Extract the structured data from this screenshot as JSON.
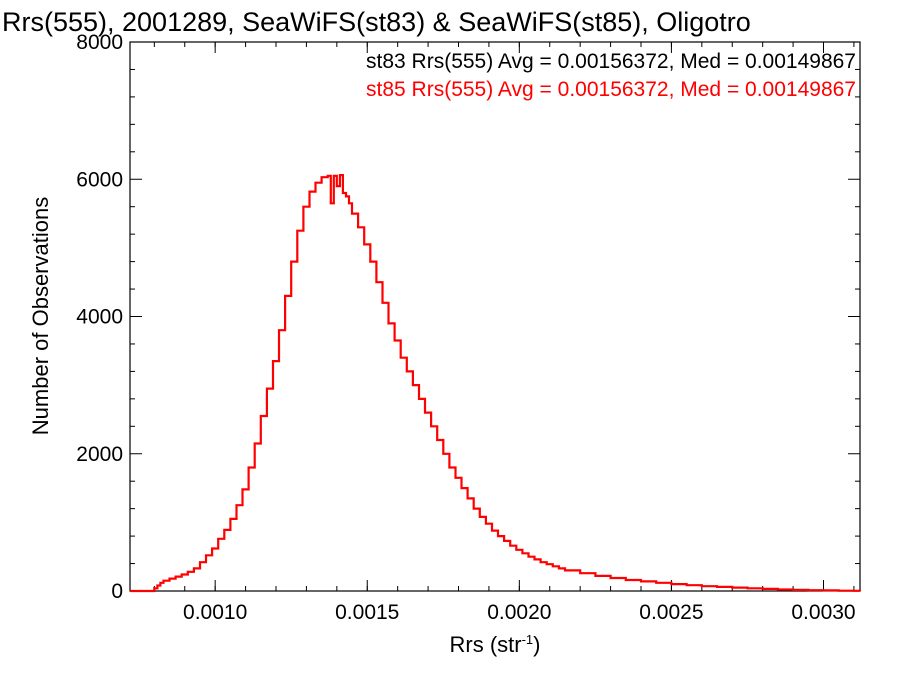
{
  "chart_data": {
    "type": "line",
    "render": "step-histogram",
    "title": "Rrs(555), 2001289, SeaWiFS(st83) & SeaWiFS(st85), Oligotro",
    "xlabel": "Rrs (str",
    "xlabel_sup": "-1",
    "xlabel_end": ")",
    "ylabel": "Number of Observations",
    "xlim": [
      0.00072,
      0.00312
    ],
    "ylim": [
      0,
      8000
    ],
    "xticks": [
      0.001,
      0.0015,
      0.002,
      0.0025,
      0.003
    ],
    "xtick_labels": [
      "0.0010",
      "0.0015",
      "0.0020",
      "0.0025",
      "0.0030"
    ],
    "yticks": [
      0,
      2000,
      4000,
      6000,
      8000
    ],
    "ytick_labels": [
      "0",
      "2000",
      "4000",
      "6000",
      "8000"
    ],
    "grid": false,
    "legend": [
      {
        "text": "st83 Rrs(555) Avg = 0.00156372, Med = 0.00149867",
        "color": "#000000"
      },
      {
        "text": "st85 Rrs(555) Avg = 0.00156372, Med = 0.00149867",
        "color": "#ff0000"
      }
    ],
    "legend_placement": "top-right",
    "series": [
      {
        "color": "#ff0000",
        "x": [
          0.00072,
          0.000795,
          0.0008,
          0.00081,
          0.00082,
          0.00083,
          0.00085,
          0.00087,
          0.00089,
          0.00091,
          0.00093,
          0.00095,
          0.00097,
          0.00099,
          0.00101,
          0.00103,
          0.00105,
          0.00107,
          0.00109,
          0.00111,
          0.00113,
          0.00115,
          0.00117,
          0.00119,
          0.00121,
          0.00123,
          0.00125,
          0.00127,
          0.00129,
          0.00131,
          0.00133,
          0.00135,
          0.00137,
          0.00138,
          0.00139,
          0.0014,
          0.00141,
          0.00142,
          0.00143,
          0.00144,
          0.00145,
          0.00147,
          0.00149,
          0.00151,
          0.00153,
          0.00155,
          0.00157,
          0.00159,
          0.00161,
          0.00163,
          0.00165,
          0.00167,
          0.00169,
          0.00171,
          0.00173,
          0.00175,
          0.00177,
          0.00179,
          0.00181,
          0.00183,
          0.00185,
          0.00187,
          0.00189,
          0.00191,
          0.00193,
          0.00195,
          0.00197,
          0.00199,
          0.00201,
          0.00203,
          0.00205,
          0.00207,
          0.00209,
          0.00211,
          0.00213,
          0.00215,
          0.0022,
          0.00225,
          0.0023,
          0.00235,
          0.0024,
          0.00245,
          0.0025,
          0.00255,
          0.0026,
          0.00265,
          0.0027,
          0.00275,
          0.0028,
          0.00285,
          0.0029,
          0.00295,
          0.003,
          0.00305,
          0.0031,
          0.00312
        ],
        "values": [
          0,
          0,
          40,
          80,
          120,
          150,
          180,
          210,
          240,
          280,
          330,
          420,
          520,
          620,
          760,
          890,
          1050,
          1250,
          1480,
          1800,
          2150,
          2550,
          2950,
          3350,
          3800,
          4300,
          4800,
          5250,
          5600,
          5820,
          5950,
          6030,
          6050,
          5650,
          6050,
          5900,
          6060,
          5800,
          5750,
          5650,
          5500,
          5300,
          5050,
          4800,
          4500,
          4200,
          3900,
          3650,
          3400,
          3200,
          3000,
          2800,
          2600,
          2400,
          2200,
          2000,
          1800,
          1650,
          1500,
          1350,
          1200,
          1080,
          980,
          880,
          800,
          730,
          660,
          600,
          550,
          500,
          460,
          420,
          390,
          360,
          330,
          300,
          260,
          220,
          190,
          160,
          140,
          120,
          100,
          85,
          70,
          60,
          50,
          40,
          30,
          22,
          16,
          12,
          9,
          5,
          3,
          0
        ]
      }
    ]
  }
}
